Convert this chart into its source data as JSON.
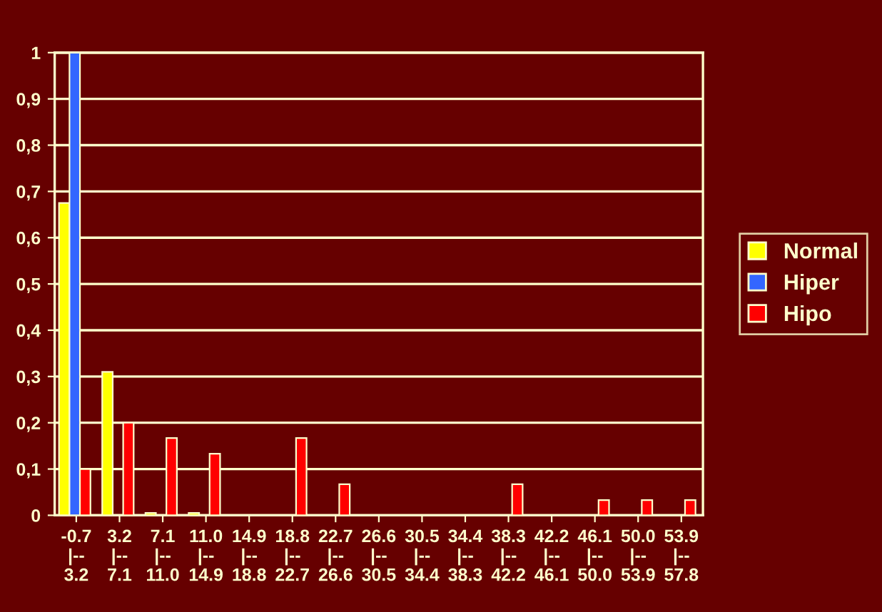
{
  "chart_data": {
    "type": "bar",
    "categories": [
      "-0.7\n|--\n3.2",
      "3.2\n|--\n7.1",
      "7.1\n|--\n11.0",
      "11.0\n|--\n14.9",
      "14.9\n|--\n18.8",
      "18.8\n|--\n22.7",
      "22.7\n|--\n26.6",
      "26.6\n|--\n30.5",
      "30.5\n|--\n34.4",
      "34.4\n|--\n38.3",
      "38.3\n|--\n42.2",
      "42.2\n|--\n46.1",
      "46.1\n|--\n50.0",
      "50.0\n|--\n53.9",
      "53.9\n|--\n57.8"
    ],
    "series": [
      {
        "name": "Normal",
        "color": "#ffff00",
        "values": [
          0.675,
          0.31,
          0.005,
          0.005,
          0,
          0,
          0,
          0,
          0,
          0,
          0,
          0,
          0,
          0,
          0
        ]
      },
      {
        "name": "Hiper",
        "color": "#3366ff",
        "values": [
          1.0,
          0,
          0,
          0,
          0,
          0,
          0,
          0,
          0,
          0,
          0,
          0,
          0,
          0,
          0
        ]
      },
      {
        "name": "Hipo",
        "color": "#ff0000",
        "values": [
          0.1,
          0.2,
          0.167,
          0.133,
          0,
          0.167,
          0.067,
          0,
          0,
          0,
          0.067,
          0,
          0.033,
          0.033,
          0.033
        ]
      }
    ],
    "ylim": [
      0,
      1
    ],
    "yticks": [
      0,
      {
        "value": 0.1,
        "label": "0,1"
      },
      {
        "value": 0.2,
        "label": "0,2"
      },
      {
        "value": 0.3,
        "label": "0,3"
      },
      {
        "value": 0.4,
        "label": "0,4"
      },
      {
        "value": 0.5,
        "label": "0,5"
      },
      {
        "value": 0.6,
        "label": "0,6"
      },
      {
        "value": 0.7,
        "label": "0,7"
      },
      {
        "value": 0.8,
        "label": "0,8"
      },
      {
        "value": 0.9,
        "label": "0,9"
      },
      1
    ],
    "grid": "y",
    "legend": "right"
  }
}
